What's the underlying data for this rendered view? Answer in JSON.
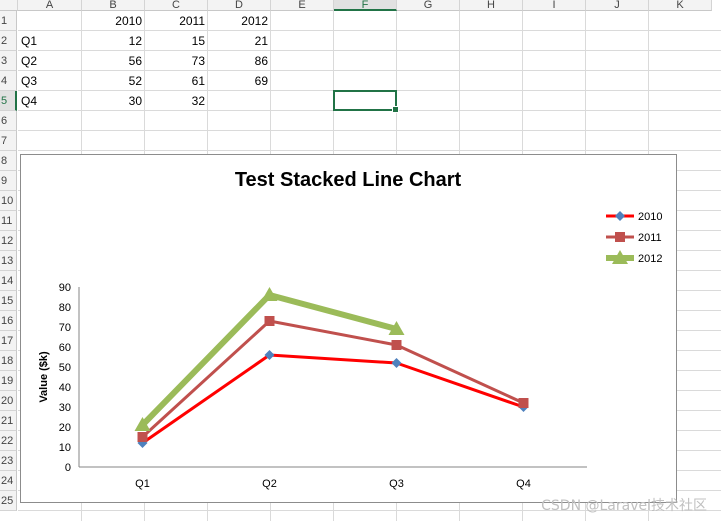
{
  "sheet": {
    "columns": [
      "A",
      "B",
      "C",
      "D",
      "E",
      "F",
      "G",
      "H",
      "I",
      "J",
      "K"
    ],
    "selected_column": "F",
    "rows": [
      "1",
      "2",
      "3",
      "4",
      "5",
      "6",
      "7",
      "8",
      "9",
      "10",
      "11",
      "12",
      "13",
      "14",
      "15",
      "16",
      "17",
      "18",
      "19",
      "20",
      "21",
      "22",
      "23",
      "24",
      "25"
    ],
    "selected_row": "5",
    "cells": {
      "B1": "2010",
      "C1": "2011",
      "D1": "2012",
      "A2": "Q1",
      "B2": "12",
      "C2": "15",
      "D2": "21",
      "A3": "Q2",
      "B3": "56",
      "C3": "73",
      "D3": "86",
      "A4": "Q3",
      "B4": "52",
      "C4": "61",
      "D4": "69",
      "A5": "Q4",
      "B5": "30",
      "C5": "32"
    },
    "active_cell": "F5"
  },
  "chart_data": {
    "type": "line",
    "title": "Test Stacked Line Chart",
    "ylabel": "Value ($k)",
    "xlabel": "",
    "categories": [
      "Q1",
      "Q2",
      "Q3",
      "Q4"
    ],
    "ylim": [
      0,
      90
    ],
    "yticks": [
      "0",
      "10",
      "20",
      "30",
      "40",
      "50",
      "60",
      "70",
      "80",
      "90"
    ],
    "grid": false,
    "legend": "right",
    "series": [
      {
        "name": "2010",
        "values": [
          12,
          56,
          52,
          30
        ],
        "color": "#ff0000",
        "marker": "diamond",
        "marker_color": "#4f81bd"
      },
      {
        "name": "2011",
        "values": [
          15,
          73,
          61,
          32
        ],
        "color": "#c0504d",
        "marker": "square",
        "marker_color": "#c0504d"
      },
      {
        "name": "2012",
        "values": [
          21,
          86,
          69,
          null
        ],
        "color": "#9bbb59",
        "marker": "triangle",
        "marker_color": "#9bbb59"
      }
    ]
  },
  "watermark": "CSDN @Laravel技术社区"
}
